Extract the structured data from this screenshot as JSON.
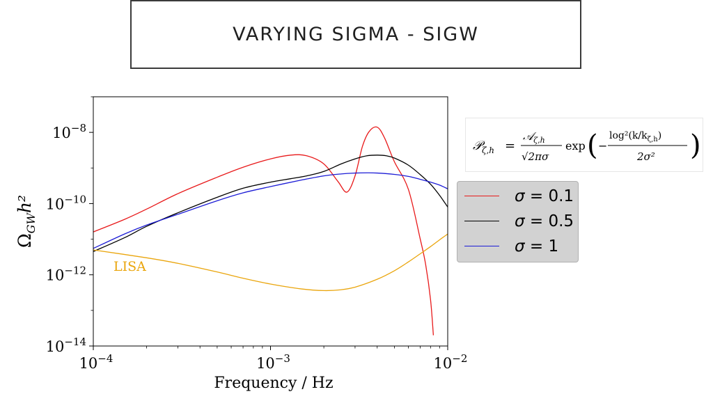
{
  "slide": {
    "title": "VARYING SIGMA - SIGW",
    "formula": {
      "lhs": "𝒫",
      "lhs_sub": "ζ,h",
      "equals": "=",
      "num": "𝒜",
      "num_sub": "ζ,h",
      "den": "√2πσ",
      "exp": "exp",
      "inner_num": "log²(k/k",
      "inner_num_sub": "ζ,h",
      "inner_num_tail": ")",
      "inner_den": "2σ²",
      "minus": "−"
    }
  },
  "chart_data": {
    "type": "line",
    "xlabel": "Frequency / Hz",
    "ylabel": "Ω",
    "ylabel_sub": "GW",
    "ylabel_tail": "h²",
    "xscale": "log",
    "yscale": "log",
    "xlim": [
      0.0001,
      0.01
    ],
    "ylim": [
      1e-14,
      1e-07
    ],
    "grid": false,
    "x_ticks": [
      {
        "base": "10",
        "exp": "−4",
        "value": 0.0001
      },
      {
        "base": "10",
        "exp": "−3",
        "value": 0.001
      },
      {
        "base": "10",
        "exp": "−2",
        "value": 0.01
      }
    ],
    "y_ticks": [
      {
        "base": "10",
        "exp": "−14",
        "value": 1e-14
      },
      {
        "base": "10",
        "exp": "−12",
        "value": 1e-12
      },
      {
        "base": "10",
        "exp": "−10",
        "value": 1e-10
      },
      {
        "base": "10",
        "exp": "−8",
        "value": 1e-08
      }
    ],
    "legend": {
      "placement": "outside-right"
    },
    "series": [
      {
        "name": "σ = 0.1",
        "legend_symbol": "σ",
        "legend_value": " = 0.1",
        "color": "#e8191a",
        "x": [
          0.0001,
          0.00015,
          0.0002,
          0.0003,
          0.0005,
          0.0007,
          0.001,
          0.0013,
          0.0016,
          0.002,
          0.0024,
          0.0027,
          0.003,
          0.0033,
          0.0036,
          0.004,
          0.0044,
          0.005,
          0.006,
          0.007,
          0.0075,
          0.008,
          0.0083
        ],
        "y": [
          1.6e-11,
          3.6e-11,
          7e-11,
          1.9e-10,
          5.5e-10,
          1.05e-09,
          1.8e-09,
          2.3e-09,
          2.2e-09,
          1.3e-09,
          4.2e-10,
          2.1e-10,
          6e-10,
          4e-09,
          1.05e-08,
          1.4e-08,
          7e-09,
          1.5e-09,
          2.5e-10,
          1e-11,
          2e-12,
          2e-13,
          2e-14
        ]
      },
      {
        "name": "σ = 0.5",
        "legend_symbol": "σ",
        "legend_value": " = 0.5",
        "color": "#000000",
        "x": [
          0.0001,
          0.00015,
          0.0002,
          0.0003,
          0.0005,
          0.0007,
          0.001,
          0.0013,
          0.0016,
          0.002,
          0.0025,
          0.003,
          0.0035,
          0.004,
          0.0045,
          0.005,
          0.006,
          0.007,
          0.008,
          0.009,
          0.01
        ],
        "y": [
          4.5e-12,
          1.1e-11,
          2.3e-11,
          5.5e-11,
          1.5e-10,
          2.7e-10,
          4e-10,
          5e-10,
          6e-10,
          8e-10,
          1.3e-09,
          1.8e-09,
          2.2e-09,
          2.3e-09,
          2.2e-09,
          1.9e-09,
          1.2e-09,
          6.5e-10,
          3.5e-10,
          1.7e-10,
          8e-11
        ]
      },
      {
        "name": "σ = 1",
        "legend_symbol": "σ",
        "legend_value": " = 1",
        "color": "#1c1cd6",
        "x": [
          0.0001,
          0.00015,
          0.0002,
          0.0003,
          0.0005,
          0.0007,
          0.001,
          0.0015,
          0.002,
          0.0025,
          0.003,
          0.0035,
          0.004,
          0.005,
          0.006,
          0.007,
          0.008,
          0.009,
          0.01
        ],
        "y": [
          5.5e-12,
          1.4e-11,
          2.5e-11,
          5e-11,
          1.2e-10,
          2e-10,
          3e-10,
          4.6e-10,
          6e-10,
          6.8e-10,
          7.2e-10,
          7.3e-10,
          7.2e-10,
          6.6e-10,
          5.8e-10,
          4.8e-10,
          4e-10,
          3.3e-10,
          2.6e-10
        ]
      },
      {
        "name": "LISA",
        "color": "#eaa50c",
        "x": [
          0.0001,
          0.0002,
          0.0003,
          0.0005,
          0.0007,
          0.001,
          0.0015,
          0.002,
          0.0025,
          0.003,
          0.004,
          0.005,
          0.006,
          0.007,
          0.008,
          0.009,
          0.01
        ],
        "y": [
          5e-12,
          3e-12,
          2.1e-12,
          1.2e-12,
          8e-13,
          5.5e-13,
          4e-13,
          3.6e-13,
          3.8e-13,
          4.5e-13,
          7.5e-13,
          1.3e-12,
          2.3e-12,
          3.9e-12,
          6.2e-12,
          9.6e-12,
          1.4e-11
        ]
      }
    ],
    "annotations": [
      {
        "text": "LISA",
        "x": 0.00013,
        "y": 1.3e-12,
        "color": "#eaa50c"
      }
    ]
  }
}
